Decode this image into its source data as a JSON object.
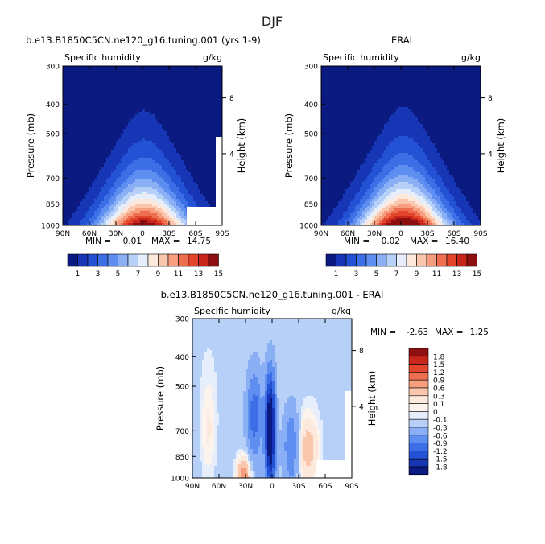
{
  "figure": {
    "title": "DJF",
    "colors": {
      "background_fill": "#1a2a8c",
      "diff_background": "#cfe3f7"
    }
  },
  "chart_data": [
    {
      "type": "heatmap",
      "id": "model",
      "title": "b.e13.B1850C5CN.ne120_g16.tuning.001 (yrs 1-9)",
      "subtitle_left": "Specific humidity",
      "subtitle_right": "g/kg",
      "ylabel": "Pressure (mb)",
      "y2label": "Height (km)",
      "xticks": [
        "90N",
        "60N",
        "30N",
        "0",
        "30S",
        "60S",
        "90S"
      ],
      "xlim": [
        90,
        -90
      ],
      "yticks": [
        300,
        400,
        500,
        700,
        850,
        1000
      ],
      "ylim": [
        1000,
        300
      ],
      "y2ticks": [
        "8",
        "4"
      ],
      "stats": {
        "min_label": "MIN =",
        "min": "0.01",
        "max_label": "MAX =",
        "max": "14.75"
      },
      "peak": 15,
      "peak_lat": -2,
      "colorbar": {
        "levels": [
          "1",
          "3",
          "5",
          "7",
          "9",
          "11",
          "13",
          "15"
        ],
        "colors": [
          "#0a1a80",
          "#1636b5",
          "#2452d4",
          "#3c6ee6",
          "#5e8ef0",
          "#8aaff5",
          "#b7d0f8",
          "#e6eefb",
          "#fde8dc",
          "#fac7ad",
          "#f69e7e",
          "#ee6e50",
          "#e2452c",
          "#c8261a",
          "#8e0f0f"
        ]
      }
    },
    {
      "type": "heatmap",
      "id": "obs",
      "title": "ERAI",
      "subtitle_left": "Specific humidity",
      "subtitle_right": "g/kg",
      "ylabel": "Pressure (mb)",
      "y2label": "Height (km)",
      "xticks": [
        "90N",
        "60N",
        "30N",
        "0",
        "30S",
        "60S",
        "90S"
      ],
      "xlim": [
        90,
        -90
      ],
      "yticks": [
        300,
        400,
        500,
        700,
        850,
        1000
      ],
      "ylim": [
        1000,
        300
      ],
      "y2ticks": [
        "8",
        "4"
      ],
      "stats": {
        "min_label": "MIN =",
        "min": "0.02",
        "max_label": "MAX =",
        "max": "16.40"
      },
      "peak": 16.4,
      "peak_lat": -3,
      "colorbar": {
        "levels": [
          "1",
          "3",
          "5",
          "7",
          "9",
          "11",
          "13",
          "15"
        ],
        "colors": [
          "#0a1a80",
          "#1636b5",
          "#2452d4",
          "#3c6ee6",
          "#5e8ef0",
          "#8aaff5",
          "#b7d0f8",
          "#e6eefb",
          "#fde8dc",
          "#fac7ad",
          "#f69e7e",
          "#ee6e50",
          "#e2452c",
          "#c8261a",
          "#8e0f0f"
        ]
      }
    },
    {
      "type": "heatmap",
      "id": "diff",
      "title": "b.e13.B1850C5CN.ne120_g16.tuning.001 - ERAI",
      "subtitle_left": "Specific humidity",
      "subtitle_right": "g/kg",
      "ylabel": "Pressure (mb)",
      "y2label": "Height (km)",
      "xticks": [
        "90N",
        "60N",
        "30N",
        "0",
        "30S",
        "60S",
        "90S"
      ],
      "xlim": [
        90,
        -90
      ],
      "yticks": [
        300,
        400,
        500,
        700,
        850,
        1000
      ],
      "ylim": [
        1000,
        300
      ],
      "y2ticks": [
        "8",
        "4"
      ],
      "stats": {
        "min_label": "MIN =",
        "min": "-2.63",
        "max_label": "MAX =",
        "max": "1.25"
      },
      "colorbar": {
        "levels": [
          "1.8",
          "1.5",
          "1.2",
          "0.9",
          "0.6",
          "0.3",
          "0.1",
          "0",
          "-0.1",
          "-0.3",
          "-0.6",
          "-0.9",
          "-1.2",
          "-1.5",
          "-1.8"
        ],
        "colors": [
          "#8e0f0f",
          "#c8261a",
          "#e2452c",
          "#ee6e50",
          "#f69e7e",
          "#fac7ad",
          "#fde8dc",
          "#fbf3ec",
          "#e6eefb",
          "#b7d0f8",
          "#8aaff5",
          "#5e8ef0",
          "#3c6ee6",
          "#2452d4",
          "#1636b5",
          "#0a1a80"
        ]
      }
    }
  ]
}
